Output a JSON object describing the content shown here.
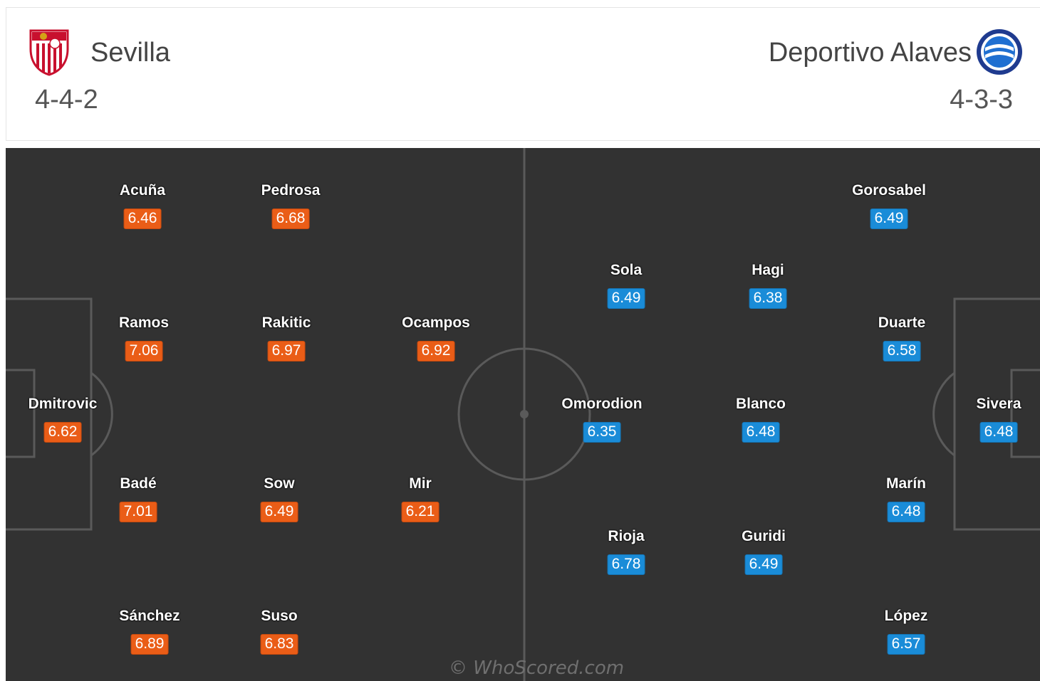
{
  "home": {
    "name": "Sevilla",
    "formation": "4-4-2",
    "crest": "sevilla-crest-icon",
    "color": "#ea5d17",
    "players": [
      {
        "name": "Acuña",
        "rating": "6.46"
      },
      {
        "name": "Pedrosa",
        "rating": "6.68"
      },
      {
        "name": "Ramos",
        "rating": "7.06"
      },
      {
        "name": "Rakitic",
        "rating": "6.97"
      },
      {
        "name": "Ocampos",
        "rating": "6.92"
      },
      {
        "name": "Dmitrovic",
        "rating": "6.62"
      },
      {
        "name": "Badé",
        "rating": "7.01"
      },
      {
        "name": "Sow",
        "rating": "6.49"
      },
      {
        "name": "Mir",
        "rating": "6.21"
      },
      {
        "name": "Sánchez",
        "rating": "6.89"
      },
      {
        "name": "Suso",
        "rating": "6.83"
      }
    ]
  },
  "away": {
    "name": "Deportivo Alaves",
    "formation": "4-3-3",
    "crest": "alaves-crest-icon",
    "color": "#1a8cd8",
    "players": [
      {
        "name": "Gorosabel",
        "rating": "6.49"
      },
      {
        "name": "Sola",
        "rating": "6.49"
      },
      {
        "name": "Hagi",
        "rating": "6.38"
      },
      {
        "name": "Duarte",
        "rating": "6.58"
      },
      {
        "name": "Omorodion",
        "rating": "6.35"
      },
      {
        "name": "Blanco",
        "rating": "6.48"
      },
      {
        "name": "Sivera",
        "rating": "6.48"
      },
      {
        "name": "Marín",
        "rating": "6.48"
      },
      {
        "name": "Rioja",
        "rating": "6.78"
      },
      {
        "name": "Guridi",
        "rating": "6.49"
      },
      {
        "name": "López",
        "rating": "6.57"
      }
    ]
  },
  "pitch_color": "#323232",
  "watermark": "© WhoScored.com"
}
